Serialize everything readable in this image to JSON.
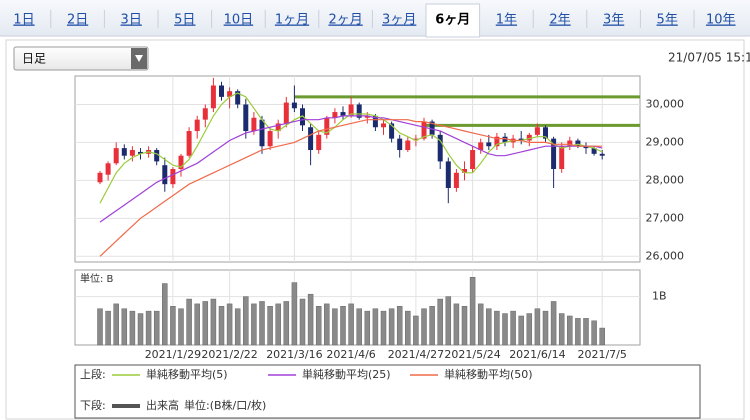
{
  "tabs": [
    "1日",
    "2日",
    "3日",
    "5日",
    "10日",
    "1ヶ月",
    "2ヶ月",
    "3ヶ月",
    "6ヶ月",
    "1年",
    "2年",
    "3年",
    "5年",
    "10年"
  ],
  "selected_tab": 8,
  "select": "日足",
  "timestamp": "21/07/05 15:1",
  "chart_data": [
    {
      "type": "candlestick",
      "categories": [
        null,
        null,
        null,
        null,
        null,
        null,
        null,
        null,
        null,
        "2021/1/29",
        null,
        null,
        null,
        null,
        null,
        null,
        "2021/2/22",
        null,
        null,
        null,
        null,
        null,
        null,
        null,
        "2021/3/16",
        null,
        null,
        null,
        null,
        null,
        null,
        "2021/4/6",
        null,
        null,
        null,
        null,
        null,
        null,
        null,
        "2021/4/27",
        null,
        null,
        null,
        null,
        null,
        null,
        "2021/5/24",
        null,
        null,
        null,
        null,
        null,
        null,
        null,
        "2021/6/14",
        null,
        null,
        null,
        null,
        null,
        null,
        null,
        "2021/7/5"
      ],
      "open": [
        27950,
        28150,
        28450,
        28850,
        28650,
        28750,
        28700,
        28800,
        28400,
        27900,
        28300,
        28650,
        29300,
        29600,
        29900,
        30500,
        30200,
        30350,
        30000,
        29300,
        29600,
        28900,
        29300,
        29500,
        30050,
        29900,
        29400,
        28800,
        29200,
        29650,
        29800,
        29700,
        30000,
        29650,
        29700,
        29400,
        29500,
        29100,
        28800,
        29050,
        29100,
        29550,
        29200,
        28500,
        27800,
        28200,
        28300,
        28800,
        29000,
        28900,
        29150,
        29000,
        29100,
        29050,
        29200,
        29400,
        29100,
        28300,
        28900,
        29050,
        28900,
        28850,
        28700
      ],
      "high": [
        28250,
        28500,
        29000,
        28950,
        28900,
        28850,
        28900,
        28850,
        28600,
        28350,
        28700,
        29400,
        29700,
        30000,
        30700,
        30600,
        30450,
        30400,
        30150,
        29800,
        29700,
        29400,
        29600,
        30200,
        30500,
        30000,
        29500,
        29300,
        29700,
        29900,
        29950,
        30200,
        30050,
        29800,
        29750,
        29600,
        29550,
        29200,
        29150,
        29200,
        29650,
        29600,
        29300,
        28600,
        28300,
        28500,
        28900,
        29100,
        29200,
        29250,
        29250,
        29200,
        29300,
        29250,
        29500,
        29450,
        29150,
        29000,
        29150,
        29100,
        29000,
        28900,
        28800
      ],
      "low": [
        27900,
        28000,
        28400,
        28550,
        28500,
        28550,
        28600,
        28400,
        27700,
        27800,
        28100,
        28600,
        29100,
        29400,
        29800,
        30100,
        29900,
        29900,
        29100,
        29200,
        28700,
        28800,
        29100,
        29400,
        29800,
        29300,
        28400,
        28700,
        29100,
        29500,
        29600,
        29650,
        29600,
        29500,
        29300,
        29200,
        29000,
        28600,
        28750,
        28900,
        29050,
        29100,
        28300,
        27400,
        27700,
        28000,
        28200,
        28700,
        28800,
        28800,
        28900,
        28850,
        28950,
        28900,
        29150,
        29000,
        27800,
        28200,
        28800,
        28850,
        28700,
        28650,
        28550
      ],
      "close": [
        28200,
        28450,
        28850,
        28650,
        28800,
        28700,
        28800,
        28500,
        27900,
        28300,
        28650,
        29300,
        29600,
        29900,
        30500,
        30200,
        30350,
        30000,
        29300,
        29650,
        28900,
        29300,
        29500,
        30050,
        29900,
        29450,
        28800,
        29200,
        29650,
        29800,
        29700,
        30000,
        29650,
        29700,
        29400,
        29500,
        29100,
        28800,
        29050,
        29100,
        29550,
        29200,
        28500,
        27800,
        28200,
        28300,
        28800,
        29000,
        28900,
        29150,
        29000,
        29100,
        29050,
        29200,
        29400,
        29100,
        28300,
        28900,
        29050,
        28900,
        28850,
        28700,
        28650
      ],
      "up_color": "#e8303a",
      "down_color": "#1c2b6e",
      "series": [
        {
          "name": "単純移動平均(5)",
          "color": "#9ccc3c",
          "values": [
            27400,
            27800,
            28200,
            28450,
            28600,
            28700,
            28750,
            28700,
            28550,
            28400,
            28350,
            28550,
            28900,
            29300,
            29700,
            30000,
            30200,
            30300,
            30200,
            29900,
            29600,
            29350,
            29300,
            29450,
            29600,
            29700,
            29500,
            29300,
            29250,
            29400,
            29600,
            29750,
            29750,
            29750,
            29700,
            29600,
            29450,
            29250,
            29150,
            29050,
            29150,
            29200,
            29050,
            28700,
            28400,
            28200,
            28200,
            28450,
            28750,
            28950,
            29000,
            29050,
            29050,
            29100,
            29150,
            29150,
            28950,
            28850,
            28900,
            28950,
            28900,
            28850,
            28750
          ]
        },
        {
          "name": "単純移動平均(25)",
          "color": "#a040d8",
          "values": [
            26900,
            27050,
            27200,
            27350,
            27500,
            27650,
            27800,
            27950,
            28050,
            28150,
            28250,
            28350,
            28450,
            28600,
            28750,
            28900,
            29050,
            29150,
            29250,
            29300,
            29350,
            29400,
            29450,
            29500,
            29550,
            29600,
            29600,
            29600,
            29650,
            29650,
            29700,
            29700,
            29700,
            29700,
            29650,
            29650,
            29600,
            29550,
            29500,
            29450,
            29400,
            29350,
            29300,
            29200,
            29100,
            29000,
            28900,
            28800,
            28700,
            28650,
            28650,
            28700,
            28750,
            28800,
            28850,
            28900,
            28900,
            28900,
            28900,
            28900,
            28900,
            28900,
            28850
          ]
        },
        {
          "name": "単純移動平均(50)",
          "color": "#f06a4a",
          "values": [
            26000,
            26200,
            26400,
            26600,
            26800,
            27000,
            27150,
            27300,
            27450,
            27600,
            27750,
            27900,
            28000,
            28100,
            28200,
            28300,
            28400,
            28500,
            28600,
            28700,
            28800,
            28850,
            28900,
            28950,
            29000,
            29100,
            29200,
            29300,
            29350,
            29400,
            29450,
            29500,
            29550,
            29600,
            29600,
            29600,
            29600,
            29600,
            29600,
            29550,
            29550,
            29500,
            29450,
            29400,
            29350,
            29300,
            29250,
            29200,
            29150,
            29100,
            29100,
            29050,
            29050,
            29000,
            29000,
            29000,
            28950,
            28950,
            28950,
            28900,
            28900,
            28900,
            28900
          ]
        }
      ],
      "hlines": [
        {
          "value": 30200,
          "start": 24,
          "color": "#6b9a2e"
        },
        {
          "value": 29450,
          "start": 40,
          "color": "#6b9a2e"
        }
      ],
      "ylim": [
        25850,
        30750
      ],
      "yticks": [
        {
          "value": 26000,
          "label": "26,000"
        },
        {
          "value": 27000,
          "label": "27,000"
        },
        {
          "value": 28000,
          "label": "28,000"
        },
        {
          "value": 29000,
          "label": "29,000"
        },
        {
          "value": 30000,
          "label": "30,000"
        }
      ],
      "grid": true,
      "legend_label": "上段:"
    },
    {
      "type": "bar",
      "unit_label": "単位: B",
      "series": [
        {
          "name": "出来高",
          "color": "#8a8a8a",
          "values": [
            0.75,
            0.7,
            0.85,
            0.75,
            0.7,
            0.65,
            0.7,
            0.7,
            1.27,
            0.8,
            0.75,
            0.95,
            0.85,
            0.9,
            0.95,
            0.8,
            0.85,
            0.75,
            1.0,
            0.85,
            0.9,
            0.8,
            0.85,
            0.9,
            1.29,
            0.95,
            1.05,
            0.8,
            0.85,
            0.75,
            0.8,
            0.85,
            0.75,
            0.7,
            0.75,
            0.7,
            0.75,
            0.8,
            0.7,
            0.6,
            0.75,
            0.8,
            0.95,
            1.0,
            0.85,
            0.8,
            1.4,
            0.85,
            0.75,
            0.7,
            0.65,
            0.7,
            0.6,
            0.65,
            0.75,
            0.7,
            0.9,
            0.65,
            0.6,
            0.55,
            0.55,
            0.5,
            0.35
          ]
        }
      ],
      "legend_note": "単位:(B株/口/枚)",
      "ylim": [
        0,
        1.55
      ],
      "yticks": [
        {
          "value": 1,
          "label": "1B"
        }
      ],
      "grid": true,
      "legend_label": "下段:"
    }
  ]
}
